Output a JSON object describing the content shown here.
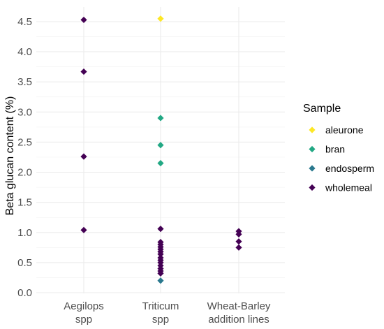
{
  "chart_data": {
    "type": "scatter",
    "ylabel": "Beta glucan content (%)",
    "xlabel": "",
    "ylim": [
      0,
      4.6
    ],
    "yticks": [
      "0.0",
      "0.5",
      "1.0",
      "1.5",
      "2.0",
      "2.5",
      "3.0",
      "3.5",
      "4.0",
      "4.5"
    ],
    "categories": [
      {
        "line1": "Aegilops",
        "line2": "spp"
      },
      {
        "line1": "Triticum",
        "line2": "spp"
      },
      {
        "line1": "Wheat-Barley",
        "line2": "addition lines"
      }
    ],
    "grid": true,
    "legend": {
      "title": "Sample",
      "position": "right",
      "entries": [
        {
          "name": "aleurone",
          "color": "#FDE725"
        },
        {
          "name": "bran",
          "color": "#22A884"
        },
        {
          "name": "endosperm",
          "color": "#2A788E"
        },
        {
          "name": "wholemeal",
          "color": "#440154"
        }
      ]
    },
    "series": [
      {
        "name": "aleurone",
        "color": "#FDE725",
        "points": [
          {
            "x": "Triticum spp",
            "y": 4.55
          }
        ]
      },
      {
        "name": "bran",
        "color": "#22A884",
        "points": [
          {
            "x": "Triticum spp",
            "y": 2.9
          },
          {
            "x": "Triticum spp",
            "y": 2.45
          },
          {
            "x": "Triticum spp",
            "y": 2.15
          }
        ]
      },
      {
        "name": "endosperm",
        "color": "#2A788E",
        "points": [
          {
            "x": "Triticum spp",
            "y": 0.2
          }
        ]
      },
      {
        "name": "wholemeal",
        "color": "#440154",
        "points": [
          {
            "x": "Aegilops spp",
            "y": 4.53
          },
          {
            "x": "Aegilops spp",
            "y": 3.67
          },
          {
            "x": "Aegilops spp",
            "y": 2.26
          },
          {
            "x": "Aegilops spp",
            "y": 1.04
          },
          {
            "x": "Triticum spp",
            "y": 1.06
          },
          {
            "x": "Triticum spp",
            "y": 0.84
          },
          {
            "x": "Triticum spp",
            "y": 0.8
          },
          {
            "x": "Triticum spp",
            "y": 0.76
          },
          {
            "x": "Triticum spp",
            "y": 0.72
          },
          {
            "x": "Triticum spp",
            "y": 0.68
          },
          {
            "x": "Triticum spp",
            "y": 0.64
          },
          {
            "x": "Triticum spp",
            "y": 0.58
          },
          {
            "x": "Triticum spp",
            "y": 0.54
          },
          {
            "x": "Triticum spp",
            "y": 0.5
          },
          {
            "x": "Triticum spp",
            "y": 0.45
          },
          {
            "x": "Triticum spp",
            "y": 0.4
          },
          {
            "x": "Triticum spp",
            "y": 0.36
          },
          {
            "x": "Triticum spp",
            "y": 0.32
          },
          {
            "x": "Wheat-Barley addition lines",
            "y": 1.02
          },
          {
            "x": "Wheat-Barley addition lines",
            "y": 0.97
          },
          {
            "x": "Wheat-Barley addition lines",
            "y": 0.85
          },
          {
            "x": "Wheat-Barley addition lines",
            "y": 0.75
          }
        ]
      }
    ]
  }
}
